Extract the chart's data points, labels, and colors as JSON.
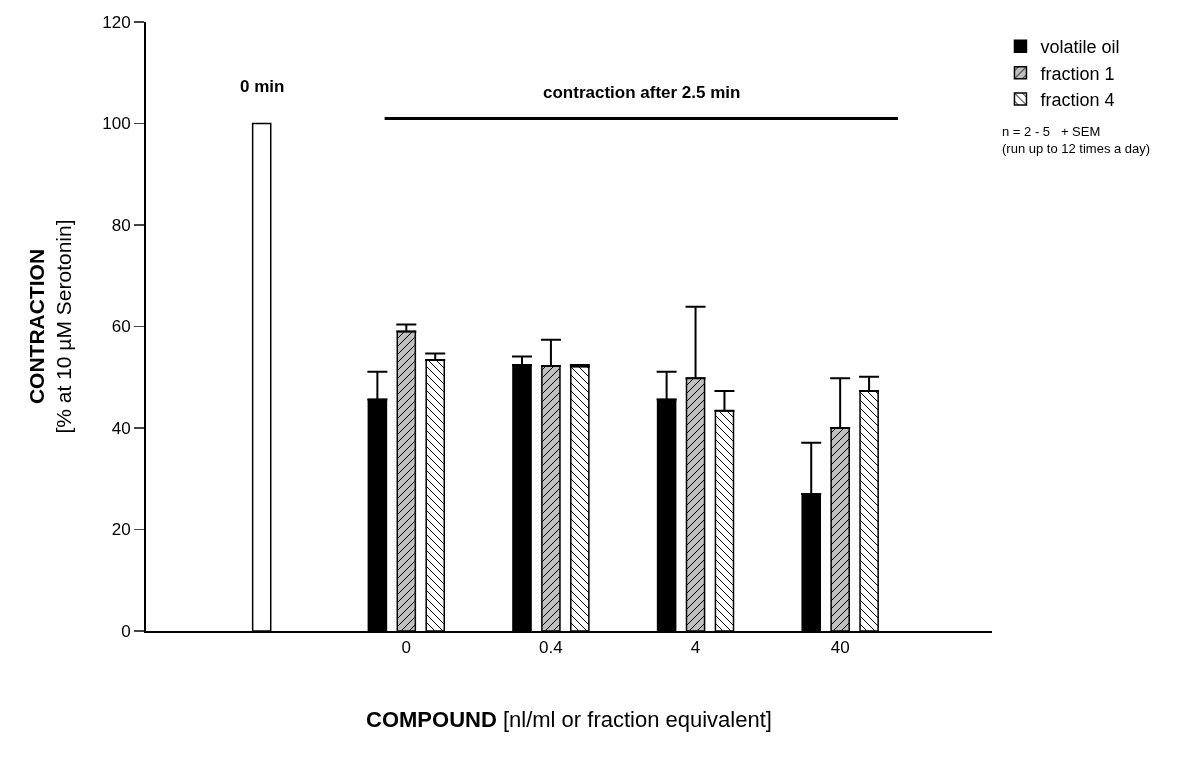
{
  "chart_data": {
    "type": "bar",
    "categories": [
      null,
      "0",
      "0.4",
      "4",
      "40"
    ],
    "series": [
      {
        "color": "#ffffff",
        "values": [
          100,
          null,
          null,
          null,
          null
        ]
      },
      {
        "name": "volatile oil",
        "color": "#000000",
        "values": [
          null,
          45.6,
          52.4,
          45.6,
          27.0
        ],
        "errors": [
          null,
          [
            45.6,
            51.1
          ],
          [
            52.4,
            54.1
          ],
          [
            45.6,
            51.1
          ],
          [
            27.0,
            37.1
          ]
        ]
      },
      {
        "name": "fraction 1",
        "color": "#c0c0c0",
        "values": [
          null,
          59.0,
          52.2,
          49.8,
          40.0
        ],
        "errors": [
          null,
          [
            59.0,
            60.4
          ],
          [
            52.2,
            57.4
          ],
          [
            49.8,
            63.9
          ],
          [
            40.0,
            49.8
          ]
        ]
      },
      {
        "name": "fraction 4",
        "color": "#ffffff",
        "values": [
          null,
          53.4,
          52.1,
          43.4,
          47.3
        ],
        "errors": [
          null,
          [
            53.4,
            54.7
          ],
          [
            52.1,
            52.4
          ],
          [
            43.4,
            47.3
          ],
          [
            47.3,
            50.1
          ]
        ]
      }
    ],
    "xlabel": "COMPOUND [nl/ml or fraction equivalent]",
    "ylabel": "CONTRACTION\n[% at 10 µM Serotonin]",
    "annotations": [
      "0 min",
      "n = 2 - 5   + SEM\n(run up to 12 times a day)"
    ],
    "ref_lines": [
      {
        "axis": "y",
        "value": 101,
        "label": "contraction after 2.5 min",
        "color": "#000000"
      }
    ],
    "ylim": [
      0,
      120
    ],
    "yticks": [
      0,
      20,
      40,
      60,
      80,
      100,
      120
    ],
    "grid": false,
    "legend": "top right"
  }
}
